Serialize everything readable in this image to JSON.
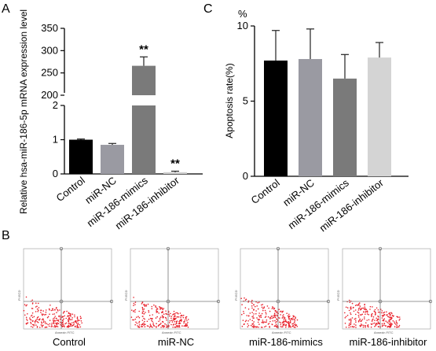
{
  "panel_labels": {
    "a": "A",
    "b": "B",
    "c": "C"
  },
  "chart_data": [
    {
      "type": "bar",
      "panel": "A",
      "title": "",
      "ylabel": "Relative hsa-miR-186-5p mRNA expression level",
      "xlabel": "",
      "categories": [
        "Control",
        "miR-NC",
        "miR-186-mimics",
        "miR-186-inhibitor"
      ],
      "values": [
        1.0,
        0.85,
        266,
        0.05
      ],
      "errors": [
        0.02,
        0.04,
        20,
        0.03
      ],
      "annotations": [
        "",
        "",
        "**",
        "**"
      ],
      "colors": [
        "#000000",
        "#9a9aa2",
        "#7a7a7a",
        "#cfcfcf"
      ],
      "y_axis_broken": true,
      "ylim_lower": [
        0,
        2
      ],
      "ylim_upper": [
        200,
        350
      ],
      "yticks_lower": [
        "0",
        "1",
        "2"
      ],
      "yticks_upper": [
        "200",
        "250",
        "300",
        "350"
      ]
    },
    {
      "type": "bar",
      "panel": "C",
      "title": "",
      "ylabel": "Apoptosis rate(%)",
      "unit": "%",
      "xlabel": "",
      "categories": [
        "Control",
        "miR-NC",
        "miR-186-mimics",
        "miR-186-inhibitor"
      ],
      "values": [
        7.7,
        7.8,
        6.5,
        7.9
      ],
      "errors": [
        2.0,
        2.0,
        1.6,
        1.0
      ],
      "colors": [
        "#000000",
        "#9a9aa2",
        "#7a7a7a",
        "#d4d4d4"
      ],
      "ylim": [
        0,
        10
      ],
      "yticks": [
        "0",
        "5",
        "10"
      ]
    }
  ],
  "flow_panels": [
    {
      "caption": "Control",
      "x_axis": "Annexin FITC",
      "y_axis": "PI ECD"
    },
    {
      "caption": "miR-NC",
      "x_axis": "Annexin FITC",
      "y_axis": "PI ECD"
    },
    {
      "caption": "miR-186-mimics",
      "x_axis": "Annexin FITC",
      "y_axis": "PI ECD"
    },
    {
      "caption": "miR-186-inhibitor",
      "x_axis": "Annexin FITC",
      "y_axis": "PI ECD"
    }
  ]
}
